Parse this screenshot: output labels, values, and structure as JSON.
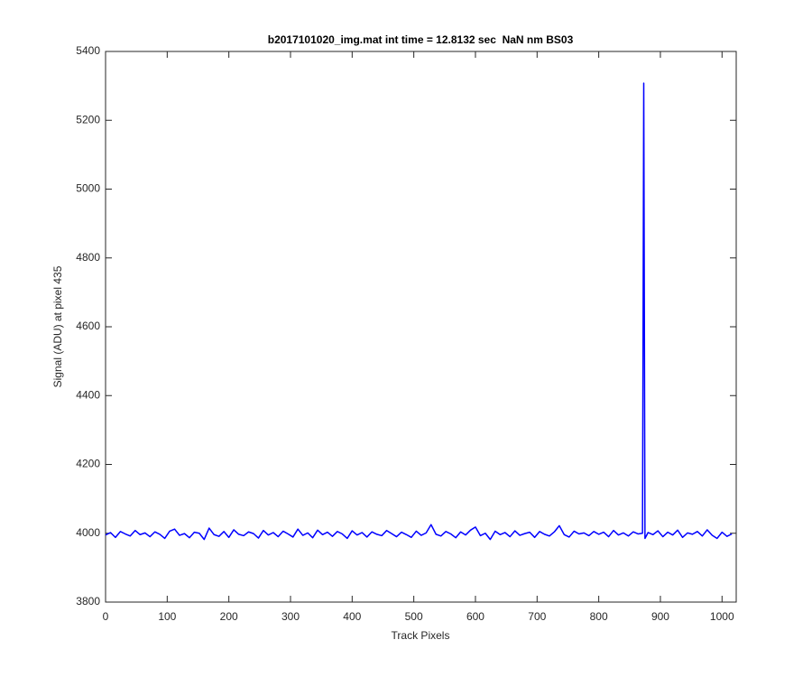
{
  "chart_data": {
    "type": "line",
    "title": "b2017101020_img.mat int time = 12.8132 sec  NaN nm BS03",
    "x_label": "Track Pixels",
    "y_label": "Signal (ADU) at pixel 435",
    "color": "#0000ff",
    "grid": false,
    "xlim": [
      0,
      1023
    ],
    "ylim": [
      3800,
      5400
    ],
    "xticks": [
      0,
      100,
      200,
      300,
      400,
      500,
      600,
      700,
      800,
      900,
      1000
    ],
    "yticks": [
      3800,
      4000,
      4200,
      4400,
      4600,
      4800,
      5000,
      5200,
      5400
    ],
    "x": [
      0,
      8,
      16,
      24,
      32,
      40,
      48,
      56,
      64,
      72,
      80,
      88,
      96,
      104,
      112,
      120,
      128,
      136,
      144,
      152,
      160,
      168,
      176,
      184,
      192,
      200,
      208,
      216,
      224,
      232,
      240,
      248,
      256,
      264,
      272,
      280,
      288,
      296,
      304,
      312,
      320,
      328,
      336,
      344,
      352,
      360,
      368,
      376,
      384,
      392,
      400,
      408,
      416,
      424,
      432,
      440,
      448,
      456,
      464,
      472,
      480,
      488,
      496,
      504,
      512,
      520,
      528,
      536,
      544,
      552,
      560,
      568,
      576,
      584,
      592,
      600,
      608,
      616,
      624,
      632,
      640,
      648,
      656,
      664,
      672,
      680,
      688,
      696,
      704,
      712,
      720,
      728,
      736,
      744,
      752,
      760,
      768,
      776,
      784,
      792,
      800,
      808,
      816,
      824,
      832,
      840,
      848,
      856,
      864,
      871,
      873,
      875,
      880,
      888,
      896,
      904,
      912,
      920,
      928,
      936,
      944,
      952,
      960,
      968,
      976,
      984,
      992,
      1000,
      1008,
      1016
    ],
    "values": [
      3995,
      4002,
      3988,
      4005,
      3998,
      3992,
      4008,
      3996,
      4001,
      3990,
      4004,
      3997,
      3985,
      4006,
      4012,
      3994,
      3999,
      3987,
      4003,
      4000,
      3982,
      4015,
      3996,
      3991,
      4005,
      3988,
      4010,
      3997,
      3993,
      4004,
      3999,
      3986,
      4008,
      3995,
      4002,
      3990,
      4006,
      3998,
      3989,
      4012,
      3994,
      4001,
      3987,
      4009,
      3996,
      4003,
      3991,
      4005,
      3998,
      3985,
      4007,
      3995,
      4002,
      3989,
      4004,
      3997,
      3993,
      4008,
      3999,
      3990,
      4003,
      3996,
      3988,
      4006,
      3994,
      4001,
      4025,
      3997,
      3992,
      4005,
      3998,
      3987,
      4004,
      3995,
      4009,
      4018,
      3993,
      4000,
      3982,
      4006,
      3996,
      4002,
      3990,
      4007,
      3994,
      3999,
      4003,
      3988,
      4005,
      3997,
      3992,
      4004,
      4022,
      3996,
      3989,
      4006,
      3998,
      4001,
      3993,
      4005,
      3997,
      4003,
      3990,
      4008,
      3995,
      4001,
      3992,
      4004,
      3998,
      4000,
      5308,
      3985,
      4002,
      3996,
      4007,
      3990,
      4003,
      3995,
      4009,
      3988,
      4001,
      3997,
      4005,
      3992,
      4010,
      3994,
      3985,
      4003,
      3991,
      3998
    ]
  }
}
